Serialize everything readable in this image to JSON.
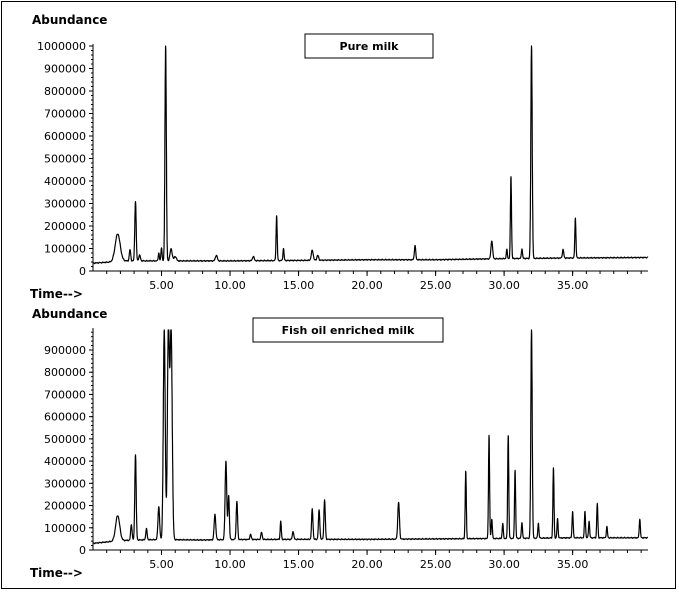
{
  "chart_data": [
    {
      "type": "line",
      "title": "Pure milk",
      "ylabel": "Abundance",
      "xlabel": "Time-->",
      "xlim": [
        0,
        40.5
      ],
      "ylim": [
        0,
        1000000
      ],
      "xticks": [
        5,
        10,
        15,
        20,
        25,
        30,
        35
      ],
      "xtick_labels": [
        "5.00",
        "10.00",
        "15.00",
        "20.00",
        "25.00",
        "30.00",
        "35.00"
      ],
      "yticks": [
        0,
        100000,
        200000,
        300000,
        400000,
        500000,
        600000,
        700000,
        800000,
        900000,
        1000000
      ],
      "ytick_labels": [
        "0",
        "100000",
        "200000",
        "300000",
        "400000",
        "500000",
        "600000",
        "700000",
        "800000",
        "900000",
        "1000000"
      ],
      "baseline": [
        [
          0,
          35000
        ],
        [
          1.3,
          40000
        ],
        [
          2,
          45000
        ],
        [
          3,
          45000
        ],
        [
          5,
          45000
        ],
        [
          10,
          45000
        ],
        [
          15,
          47000
        ],
        [
          20,
          50000
        ],
        [
          25,
          50000
        ],
        [
          30,
          55000
        ],
        [
          35,
          58000
        ],
        [
          40.5,
          60000
        ]
      ],
      "peaks": [
        {
          "x": 1.8,
          "y": 165000,
          "w": 0.18
        },
        {
          "x": 2.7,
          "y": 95000,
          "w": 0.05
        },
        {
          "x": 3.1,
          "y": 310000,
          "w": 0.05
        },
        {
          "x": 3.4,
          "y": 70000,
          "w": 0.06
        },
        {
          "x": 4.8,
          "y": 80000,
          "w": 0.04
        },
        {
          "x": 5.0,
          "y": 105000,
          "w": 0.04
        },
        {
          "x": 5.3,
          "y": 1000000,
          "w": 0.05
        },
        {
          "x": 5.7,
          "y": 98000,
          "w": 0.08
        },
        {
          "x": 6.0,
          "y": 65000,
          "w": 0.08
        },
        {
          "x": 9.0,
          "y": 70000,
          "w": 0.07
        },
        {
          "x": 11.7,
          "y": 65000,
          "w": 0.06
        },
        {
          "x": 13.4,
          "y": 245000,
          "w": 0.04
        },
        {
          "x": 13.9,
          "y": 100000,
          "w": 0.04
        },
        {
          "x": 16.0,
          "y": 92000,
          "w": 0.07
        },
        {
          "x": 16.4,
          "y": 70000,
          "w": 0.06
        },
        {
          "x": 23.5,
          "y": 113000,
          "w": 0.05
        },
        {
          "x": 29.1,
          "y": 135000,
          "w": 0.06
        },
        {
          "x": 30.2,
          "y": 95000,
          "w": 0.04
        },
        {
          "x": 30.5,
          "y": 420000,
          "w": 0.04
        },
        {
          "x": 31.3,
          "y": 100000,
          "w": 0.04
        },
        {
          "x": 32.0,
          "y": 1000000,
          "w": 0.05
        },
        {
          "x": 34.3,
          "y": 95000,
          "w": 0.05
        },
        {
          "x": 35.2,
          "y": 235000,
          "w": 0.04
        }
      ]
    },
    {
      "type": "line",
      "title": "Fish oil enriched milk",
      "ylabel": "Abundance",
      "xlabel": "Time-->",
      "xlim": [
        0,
        40.5
      ],
      "ylim": [
        0,
        990000
      ],
      "xticks": [
        5,
        10,
        15,
        20,
        25,
        30,
        35
      ],
      "xtick_labels": [
        "5.00",
        "10.00",
        "15.00",
        "20.00",
        "25.00",
        "30.00",
        "35.00"
      ],
      "yticks": [
        0,
        100000,
        200000,
        300000,
        400000,
        500000,
        600000,
        700000,
        800000,
        900000
      ],
      "ytick_labels": [
        "0",
        "100000",
        "200000",
        "300000",
        "400000",
        "500000",
        "600000",
        "700000",
        "800000",
        "900000"
      ],
      "baseline": [
        [
          0,
          30000
        ],
        [
          1.3,
          38000
        ],
        [
          2,
          42000
        ],
        [
          3,
          45000
        ],
        [
          5,
          47000
        ],
        [
          8,
          45000
        ],
        [
          10,
          47000
        ],
        [
          15,
          48000
        ],
        [
          20,
          48000
        ],
        [
          25,
          50000
        ],
        [
          30,
          52000
        ],
        [
          35,
          55000
        ],
        [
          40.5,
          55000
        ]
      ],
      "peaks": [
        {
          "x": 1.8,
          "y": 155000,
          "w": 0.15
        },
        {
          "x": 2.8,
          "y": 115000,
          "w": 0.05
        },
        {
          "x": 3.1,
          "y": 430000,
          "w": 0.05
        },
        {
          "x": 3.9,
          "y": 95000,
          "w": 0.05
        },
        {
          "x": 4.8,
          "y": 195000,
          "w": 0.06
        },
        {
          "x": 5.2,
          "y": 990000,
          "w": 0.07
        },
        {
          "x": 5.5,
          "y": 990000,
          "w": 0.07
        },
        {
          "x": 5.7,
          "y": 990000,
          "w": 0.08
        },
        {
          "x": 8.9,
          "y": 160000,
          "w": 0.06
        },
        {
          "x": 9.7,
          "y": 400000,
          "w": 0.06
        },
        {
          "x": 9.9,
          "y": 245000,
          "w": 0.05
        },
        {
          "x": 10.5,
          "y": 220000,
          "w": 0.05
        },
        {
          "x": 11.5,
          "y": 70000,
          "w": 0.05
        },
        {
          "x": 12.3,
          "y": 80000,
          "w": 0.05
        },
        {
          "x": 13.7,
          "y": 130000,
          "w": 0.04
        },
        {
          "x": 14.6,
          "y": 85000,
          "w": 0.05
        },
        {
          "x": 16.0,
          "y": 185000,
          "w": 0.05
        },
        {
          "x": 16.5,
          "y": 180000,
          "w": 0.05
        },
        {
          "x": 16.9,
          "y": 225000,
          "w": 0.05
        },
        {
          "x": 22.3,
          "y": 215000,
          "w": 0.06
        },
        {
          "x": 27.2,
          "y": 355000,
          "w": 0.04
        },
        {
          "x": 28.9,
          "y": 515000,
          "w": 0.04
        },
        {
          "x": 29.1,
          "y": 140000,
          "w": 0.04
        },
        {
          "x": 29.9,
          "y": 120000,
          "w": 0.04
        },
        {
          "x": 30.3,
          "y": 515000,
          "w": 0.04
        },
        {
          "x": 30.8,
          "y": 360000,
          "w": 0.04
        },
        {
          "x": 31.3,
          "y": 125000,
          "w": 0.04
        },
        {
          "x": 32.0,
          "y": 990000,
          "w": 0.05
        },
        {
          "x": 32.5,
          "y": 120000,
          "w": 0.04
        },
        {
          "x": 33.6,
          "y": 370000,
          "w": 0.04
        },
        {
          "x": 33.9,
          "y": 140000,
          "w": 0.04
        },
        {
          "x": 35.0,
          "y": 175000,
          "w": 0.04
        },
        {
          "x": 35.9,
          "y": 175000,
          "w": 0.04
        },
        {
          "x": 36.2,
          "y": 130000,
          "w": 0.04
        },
        {
          "x": 36.8,
          "y": 210000,
          "w": 0.04
        },
        {
          "x": 37.5,
          "y": 105000,
          "w": 0.04
        },
        {
          "x": 39.9,
          "y": 140000,
          "w": 0.04
        }
      ]
    }
  ]
}
